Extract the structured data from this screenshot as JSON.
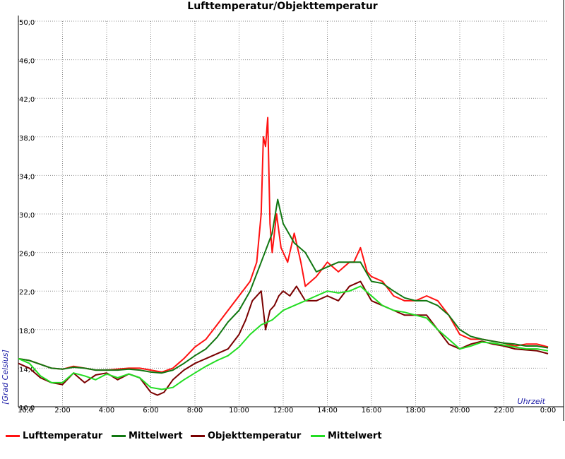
{
  "chart_data": {
    "type": "line",
    "title": "Lufttemperatur/Objekttemperatur",
    "xlabel": "Uhrzeit",
    "ylabel": "[Grad Celsius]",
    "xlim": [
      0,
      24
    ],
    "ylim": [
      10,
      50
    ],
    "y_ticks": [
      "50,0",
      "46,0",
      "42,0",
      "38,0",
      "34,0",
      "30,0",
      "26,0",
      "22,0",
      "18,0",
      "14,0",
      "10,0"
    ],
    "x_ticks": [
      "2:00",
      "4:00",
      "6:00",
      "8:00",
      "10:00",
      "12:00",
      "14:00",
      "16:00",
      "18:00",
      "20:00",
      "22:00",
      "0:00"
    ],
    "grid": true,
    "legend_position": "bottom",
    "series": [
      {
        "name": "Lufttemperatur",
        "color": "#ff1111",
        "x": [
          0,
          0.5,
          1,
          1.5,
          2,
          2.5,
          3,
          3.5,
          4,
          4.5,
          5,
          5.5,
          6,
          6.5,
          7,
          7.5,
          8,
          8.5,
          9,
          9.5,
          10,
          10.5,
          10.8,
          11,
          11.1,
          11.2,
          11.3,
          11.4,
          11.5,
          11.7,
          11.9,
          12.2,
          12.5,
          12.8,
          13,
          13.5,
          14,
          14.5,
          15,
          15.2,
          15.5,
          15.8,
          16,
          16.5,
          17,
          17.5,
          18,
          18.5,
          19,
          19.5,
          20,
          20.5,
          21,
          21.5,
          22,
          22.5,
          23,
          23.5,
          24
        ],
        "values": [
          15.0,
          14.8,
          14.4,
          14.0,
          13.9,
          14.2,
          14.0,
          13.8,
          13.8,
          13.9,
          14.0,
          14.0,
          13.8,
          13.6,
          14.0,
          15.0,
          16.2,
          17.0,
          18.5,
          20.0,
          21.5,
          23.0,
          25.0,
          30.0,
          38.0,
          37.0,
          40.0,
          29.0,
          26.0,
          30.0,
          26.5,
          25.0,
          28.0,
          25.0,
          22.5,
          23.5,
          25.0,
          24.0,
          25.0,
          25.0,
          26.5,
          24.0,
          23.5,
          23.0,
          21.5,
          21.0,
          21.0,
          21.5,
          21.0,
          19.5,
          17.5,
          17.0,
          17.0,
          16.8,
          16.6,
          16.3,
          16.5,
          16.5,
          16.2
        ]
      },
      {
        "name": "Mittelwert",
        "color": "#117711",
        "x": [
          0,
          0.5,
          1,
          1.5,
          2,
          2.5,
          3,
          3.5,
          4,
          4.5,
          5,
          5.5,
          6,
          6.5,
          7,
          7.5,
          8,
          8.5,
          9,
          9.5,
          10,
          10.5,
          11,
          11.5,
          11.75,
          12,
          12.5,
          13,
          13.5,
          14,
          14.5,
          15,
          15.5,
          16,
          16.5,
          17,
          17.5,
          18,
          18.5,
          19,
          19.5,
          20,
          20.5,
          21,
          21.5,
          22,
          22.5,
          23,
          23.5,
          24
        ],
        "values": [
          15.0,
          14.8,
          14.4,
          14.0,
          13.9,
          14.1,
          14.0,
          13.8,
          13.8,
          13.8,
          13.9,
          13.8,
          13.6,
          13.5,
          13.8,
          14.5,
          15.3,
          16.0,
          17.2,
          18.8,
          20.0,
          22.0,
          25.0,
          28.0,
          31.5,
          29.0,
          27.0,
          26.0,
          24.0,
          24.5,
          25.0,
          25.0,
          25.0,
          23.0,
          22.8,
          22.0,
          21.3,
          21.0,
          21.0,
          20.5,
          19.5,
          18.0,
          17.3,
          17.0,
          16.8,
          16.6,
          16.5,
          16.3,
          16.3,
          16.1
        ]
      },
      {
        "name": "Objekttemperatur",
        "color": "#7a0000",
        "x": [
          0,
          0.5,
          1,
          1.5,
          2,
          2.5,
          3,
          3.5,
          4,
          4.5,
          5,
          5.5,
          6,
          6.3,
          6.6,
          7,
          7.5,
          8,
          8.5,
          9,
          9.5,
          10,
          10.3,
          10.6,
          11,
          11.2,
          11.4,
          11.6,
          11.8,
          12,
          12.3,
          12.6,
          13,
          13.5,
          14,
          14.5,
          15,
          15.5,
          16,
          16.5,
          17,
          17.5,
          18,
          18.5,
          19,
          19.5,
          20,
          20.5,
          21,
          21.5,
          22,
          22.5,
          23,
          23.5,
          24
        ],
        "values": [
          14.5,
          14.0,
          13.0,
          12.5,
          12.3,
          13.5,
          12.5,
          13.3,
          13.5,
          12.8,
          13.4,
          13.0,
          11.5,
          11.2,
          11.5,
          12.8,
          13.8,
          14.5,
          15.0,
          15.5,
          16.0,
          17.5,
          19.0,
          21.0,
          22.0,
          18.0,
          20.0,
          20.5,
          21.5,
          22.0,
          21.5,
          22.5,
          21.0,
          21.0,
          21.5,
          21.0,
          22.5,
          23.0,
          21.0,
          20.5,
          20.0,
          19.5,
          19.5,
          19.5,
          18.0,
          16.5,
          16.0,
          16.5,
          16.8,
          16.5,
          16.3,
          16.0,
          15.9,
          15.8,
          15.5
        ]
      },
      {
        "name": "Mittelwert",
        "color": "#22dd22",
        "x": [
          0,
          0.5,
          1,
          1.5,
          2,
          2.5,
          3,
          3.5,
          4,
          4.5,
          5,
          5.5,
          6,
          6.5,
          7,
          7.5,
          8,
          8.5,
          9,
          9.5,
          10,
          10.5,
          11,
          11.5,
          12,
          12.5,
          13,
          13.5,
          14,
          14.5,
          15,
          15.5,
          16,
          16.5,
          17,
          17.5,
          18,
          18.5,
          19,
          19.5,
          20,
          20.5,
          21,
          21.5,
          22,
          22.5,
          23,
          23.5,
          24
        ],
        "values": [
          15.0,
          14.5,
          13.2,
          12.5,
          12.5,
          13.5,
          13.2,
          12.8,
          13.4,
          13.0,
          13.4,
          13.0,
          12.0,
          11.8,
          12.0,
          12.8,
          13.5,
          14.2,
          14.8,
          15.3,
          16.2,
          17.5,
          18.5,
          19.0,
          20.0,
          20.5,
          21.0,
          21.5,
          22.0,
          21.8,
          22.0,
          22.5,
          21.5,
          20.5,
          20.0,
          19.8,
          19.5,
          19.2,
          18.0,
          17.0,
          16.0,
          16.3,
          16.7,
          16.6,
          16.4,
          16.2,
          16.0,
          16.0,
          15.8
        ]
      }
    ]
  }
}
